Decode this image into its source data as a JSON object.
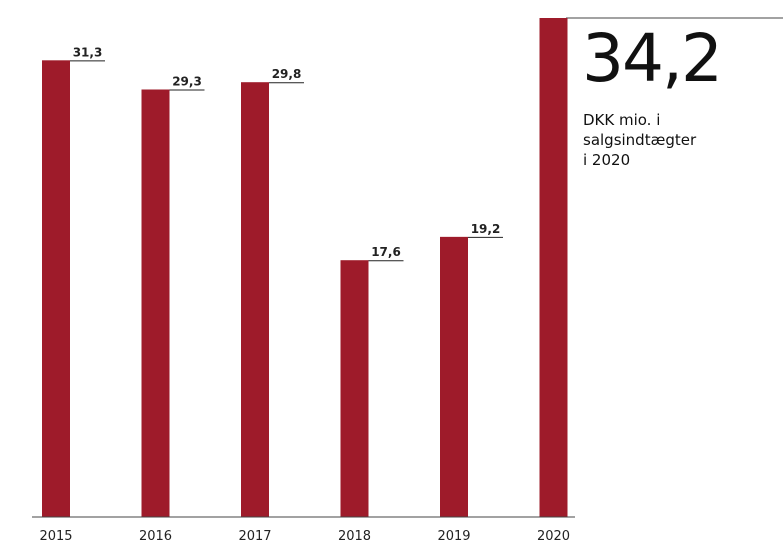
{
  "highlight": {
    "value": "34,2",
    "caption_lines": [
      "DKK mio. i",
      "salgsindtægter",
      "i 2020"
    ]
  },
  "colors": {
    "bar": "#9e1b2a",
    "text": "#222222"
  },
  "chart_data": {
    "type": "bar",
    "categories": [
      "2015",
      "2016",
      "2017",
      "2018",
      "2019",
      "2020"
    ],
    "values": [
      31.3,
      29.3,
      29.8,
      17.6,
      19.2,
      34.2
    ],
    "value_labels": [
      "31,3",
      "29,3",
      "29,8",
      "17,6",
      "19,2",
      ""
    ],
    "title": "",
    "xlabel": "",
    "ylabel": "",
    "ylim": [
      0,
      34.2
    ],
    "grid": false,
    "legend": "none"
  }
}
